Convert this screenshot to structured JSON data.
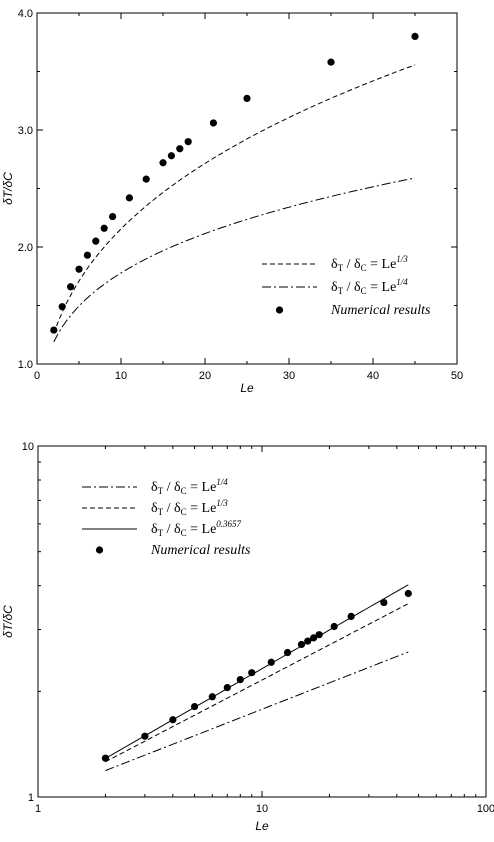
{
  "chart_data": [
    {
      "type": "scatter",
      "xscale": "linear",
      "yscale": "linear",
      "xlabel": "Le",
      "ylabel": "δT/δC",
      "xlim": [
        0,
        50
      ],
      "ylim": [
        1.0,
        4.0
      ],
      "xticks": [
        {
          "v": 0,
          "label": "0"
        },
        {
          "v": 10,
          "label": "10"
        },
        {
          "v": 20,
          "label": "20"
        },
        {
          "v": 30,
          "label": "30"
        },
        {
          "v": 40,
          "label": "40"
        },
        {
          "v": 50,
          "label": "50"
        }
      ],
      "yticks": [
        {
          "v": 1.0,
          "label": "1.0"
        },
        {
          "v": 2.0,
          "label": "2.0"
        },
        {
          "v": 3.0,
          "label": "3.0"
        },
        {
          "v": 4.0,
          "label": "4.0"
        }
      ],
      "legend_position": "lower-right",
      "series": [
        {
          "name": "δT / δC = Le1/3",
          "lhs": "δ",
          "lhs_sub1": "T",
          "lhs_sub2": "C",
          "rhs": "= Le",
          "exp": "1/3",
          "kind": "line",
          "style": "dashed",
          "exponent": 0.3333,
          "x_range": [
            2,
            45
          ]
        },
        {
          "name": "δT / δC = Le1/4",
          "lhs": "δ",
          "lhs_sub1": "T",
          "lhs_sub2": "C",
          "rhs": "= Le",
          "exp": "1/4",
          "kind": "line",
          "style": "dashdot",
          "exponent": 0.25,
          "x_range": [
            2,
            45
          ]
        },
        {
          "name": "Numerical results",
          "kind": "points",
          "x": [
            2,
            3,
            4,
            5,
            6,
            7,
            8,
            9,
            11,
            13,
            15,
            16,
            17,
            18,
            21,
            25,
            35,
            45
          ],
          "y": [
            1.29,
            1.49,
            1.66,
            1.81,
            1.93,
            2.05,
            2.16,
            2.26,
            2.42,
            2.58,
            2.72,
            2.78,
            2.84,
            2.9,
            3.06,
            3.27,
            3.58,
            3.8
          ]
        }
      ]
    },
    {
      "type": "scatter",
      "xscale": "log",
      "yscale": "log",
      "xlabel": "Le",
      "ylabel": "δT/δC",
      "xlim": [
        1,
        100
      ],
      "ylim": [
        1,
        10
      ],
      "xticks": [
        {
          "v": 1,
          "label": "1"
        },
        {
          "v": 10,
          "label": "10"
        },
        {
          "v": 100,
          "label": "100"
        }
      ],
      "yticks": [
        {
          "v": 1,
          "label": "1"
        },
        {
          "v": 10,
          "label": "10"
        }
      ],
      "legend_position": "upper-left",
      "series": [
        {
          "name": "δT / δC = Le1/4",
          "lhs": "δ",
          "lhs_sub1": "T",
          "lhs_sub2": "C",
          "rhs": "= Le",
          "exp": "1/4",
          "kind": "line",
          "style": "dashdot",
          "exponent": 0.25,
          "x_range": [
            2,
            45
          ]
        },
        {
          "name": "δT / δC = Le1/3",
          "lhs": "δ",
          "lhs_sub1": "T",
          "lhs_sub2": "C",
          "rhs": "= Le",
          "exp": "1/3",
          "kind": "line",
          "style": "dashed",
          "exponent": 0.3333,
          "x_range": [
            2,
            45
          ]
        },
        {
          "name": "δT / δC = Le0.3657",
          "lhs": "δ",
          "lhs_sub1": "T",
          "lhs_sub2": "C",
          "rhs": "= Le",
          "exp": "0.3657",
          "kind": "line",
          "style": "solid",
          "exponent": 0.3657,
          "x_range": [
            2,
            45
          ]
        },
        {
          "name": "Numerical results",
          "kind": "points",
          "x": [
            2,
            3,
            4,
            5,
            6,
            7,
            8,
            9,
            11,
            13,
            15,
            16,
            17,
            18,
            21,
            25,
            35,
            45
          ],
          "y": [
            1.29,
            1.49,
            1.66,
            1.81,
            1.93,
            2.05,
            2.16,
            2.26,
            2.42,
            2.58,
            2.72,
            2.78,
            2.84,
            2.9,
            3.06,
            3.27,
            3.58,
            3.8
          ]
        }
      ]
    }
  ]
}
